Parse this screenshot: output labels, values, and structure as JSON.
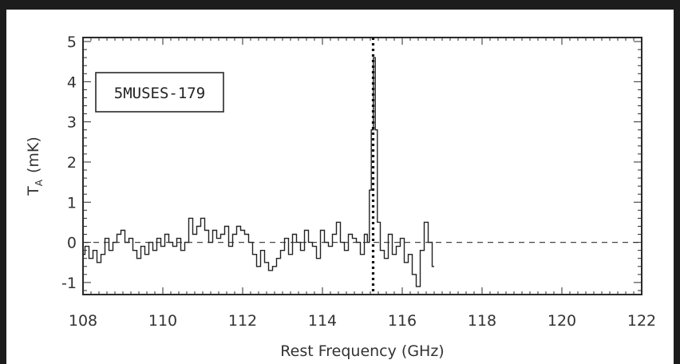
{
  "chart_data": {
    "type": "line",
    "title": "",
    "label_box": "5MUSES-179",
    "xlabel": "Rest Frequency (GHz)",
    "ylabel": "T_A (mK)",
    "ylabel_main": "T",
    "ylabel_sub": "A",
    "ylabel_unit": "(mK)",
    "xlim": [
      108,
      122
    ],
    "ylim": [
      -1.3,
      5.1
    ],
    "xticks": [
      108,
      110,
      112,
      114,
      116,
      118,
      120,
      122
    ],
    "xtick_labels": [
      "108",
      "110",
      "112",
      "114",
      "116",
      "118",
      "120",
      "122"
    ],
    "yticks": [
      -1,
      0,
      1,
      2,
      3,
      4,
      5
    ],
    "ytick_labels": [
      "-1",
      "0",
      "1",
      "2",
      "3",
      "4",
      "5"
    ],
    "reference_line": {
      "x": 115.27,
      "style": "dotted"
    },
    "zero_line": {
      "y": 0,
      "style": "dashed"
    },
    "grid": false,
    "series": [
      {
        "step": true,
        "x": [
          108.0,
          108.1,
          108.2,
          108.3,
          108.4,
          108.5,
          108.6,
          108.7,
          108.8,
          108.9,
          109.0,
          109.1,
          109.2,
          109.3,
          109.4,
          109.5,
          109.6,
          109.7,
          109.8,
          109.9,
          110.0,
          110.1,
          110.2,
          110.3,
          110.4,
          110.5,
          110.6,
          110.7,
          110.8,
          110.9,
          111.0,
          111.1,
          111.2,
          111.3,
          111.4,
          111.5,
          111.6,
          111.7,
          111.8,
          111.9,
          112.0,
          112.1,
          112.2,
          112.3,
          112.4,
          112.5,
          112.6,
          112.7,
          112.8,
          112.9,
          113.0,
          113.1,
          113.2,
          113.3,
          113.4,
          113.5,
          113.6,
          113.7,
          113.8,
          113.9,
          114.0,
          114.1,
          114.2,
          114.3,
          114.4,
          114.5,
          114.6,
          114.7,
          114.8,
          114.9,
          115.0,
          115.1,
          115.15,
          115.2,
          115.25,
          115.3,
          115.35,
          115.4,
          115.5,
          115.6,
          115.7,
          115.8,
          115.9,
          116.0,
          116.1,
          116.2,
          116.3,
          116.4,
          116.5,
          116.6,
          116.7,
          116.8
        ],
        "y": [
          -0.3,
          -0.1,
          -0.4,
          -0.2,
          -0.5,
          -0.3,
          0.1,
          -0.2,
          0.0,
          0.2,
          0.3,
          0.0,
          0.1,
          -0.2,
          -0.4,
          -0.1,
          -0.3,
          0.0,
          -0.2,
          0.1,
          -0.1,
          0.2,
          0.0,
          -0.1,
          0.1,
          -0.2,
          0.0,
          0.6,
          0.2,
          0.4,
          0.6,
          0.3,
          0.0,
          0.3,
          0.1,
          0.2,
          0.4,
          -0.1,
          0.2,
          0.4,
          0.3,
          0.2,
          0.0,
          -0.3,
          -0.6,
          -0.2,
          -0.5,
          -0.7,
          -0.6,
          -0.4,
          -0.2,
          0.1,
          -0.3,
          0.2,
          0.0,
          -0.2,
          0.3,
          0.0,
          -0.1,
          -0.4,
          0.3,
          0.0,
          -0.1,
          0.2,
          0.5,
          0.0,
          -0.2,
          0.2,
          0.1,
          0.0,
          -0.3,
          0.2,
          0.0,
          1.3,
          2.8,
          4.6,
          2.8,
          0.5,
          -0.2,
          -0.4,
          0.2,
          -0.3,
          -0.1,
          0.1,
          -0.5,
          -0.3,
          -0.8,
          -1.1,
          -0.2,
          0.5,
          0.0,
          -0.6
        ]
      }
    ]
  }
}
